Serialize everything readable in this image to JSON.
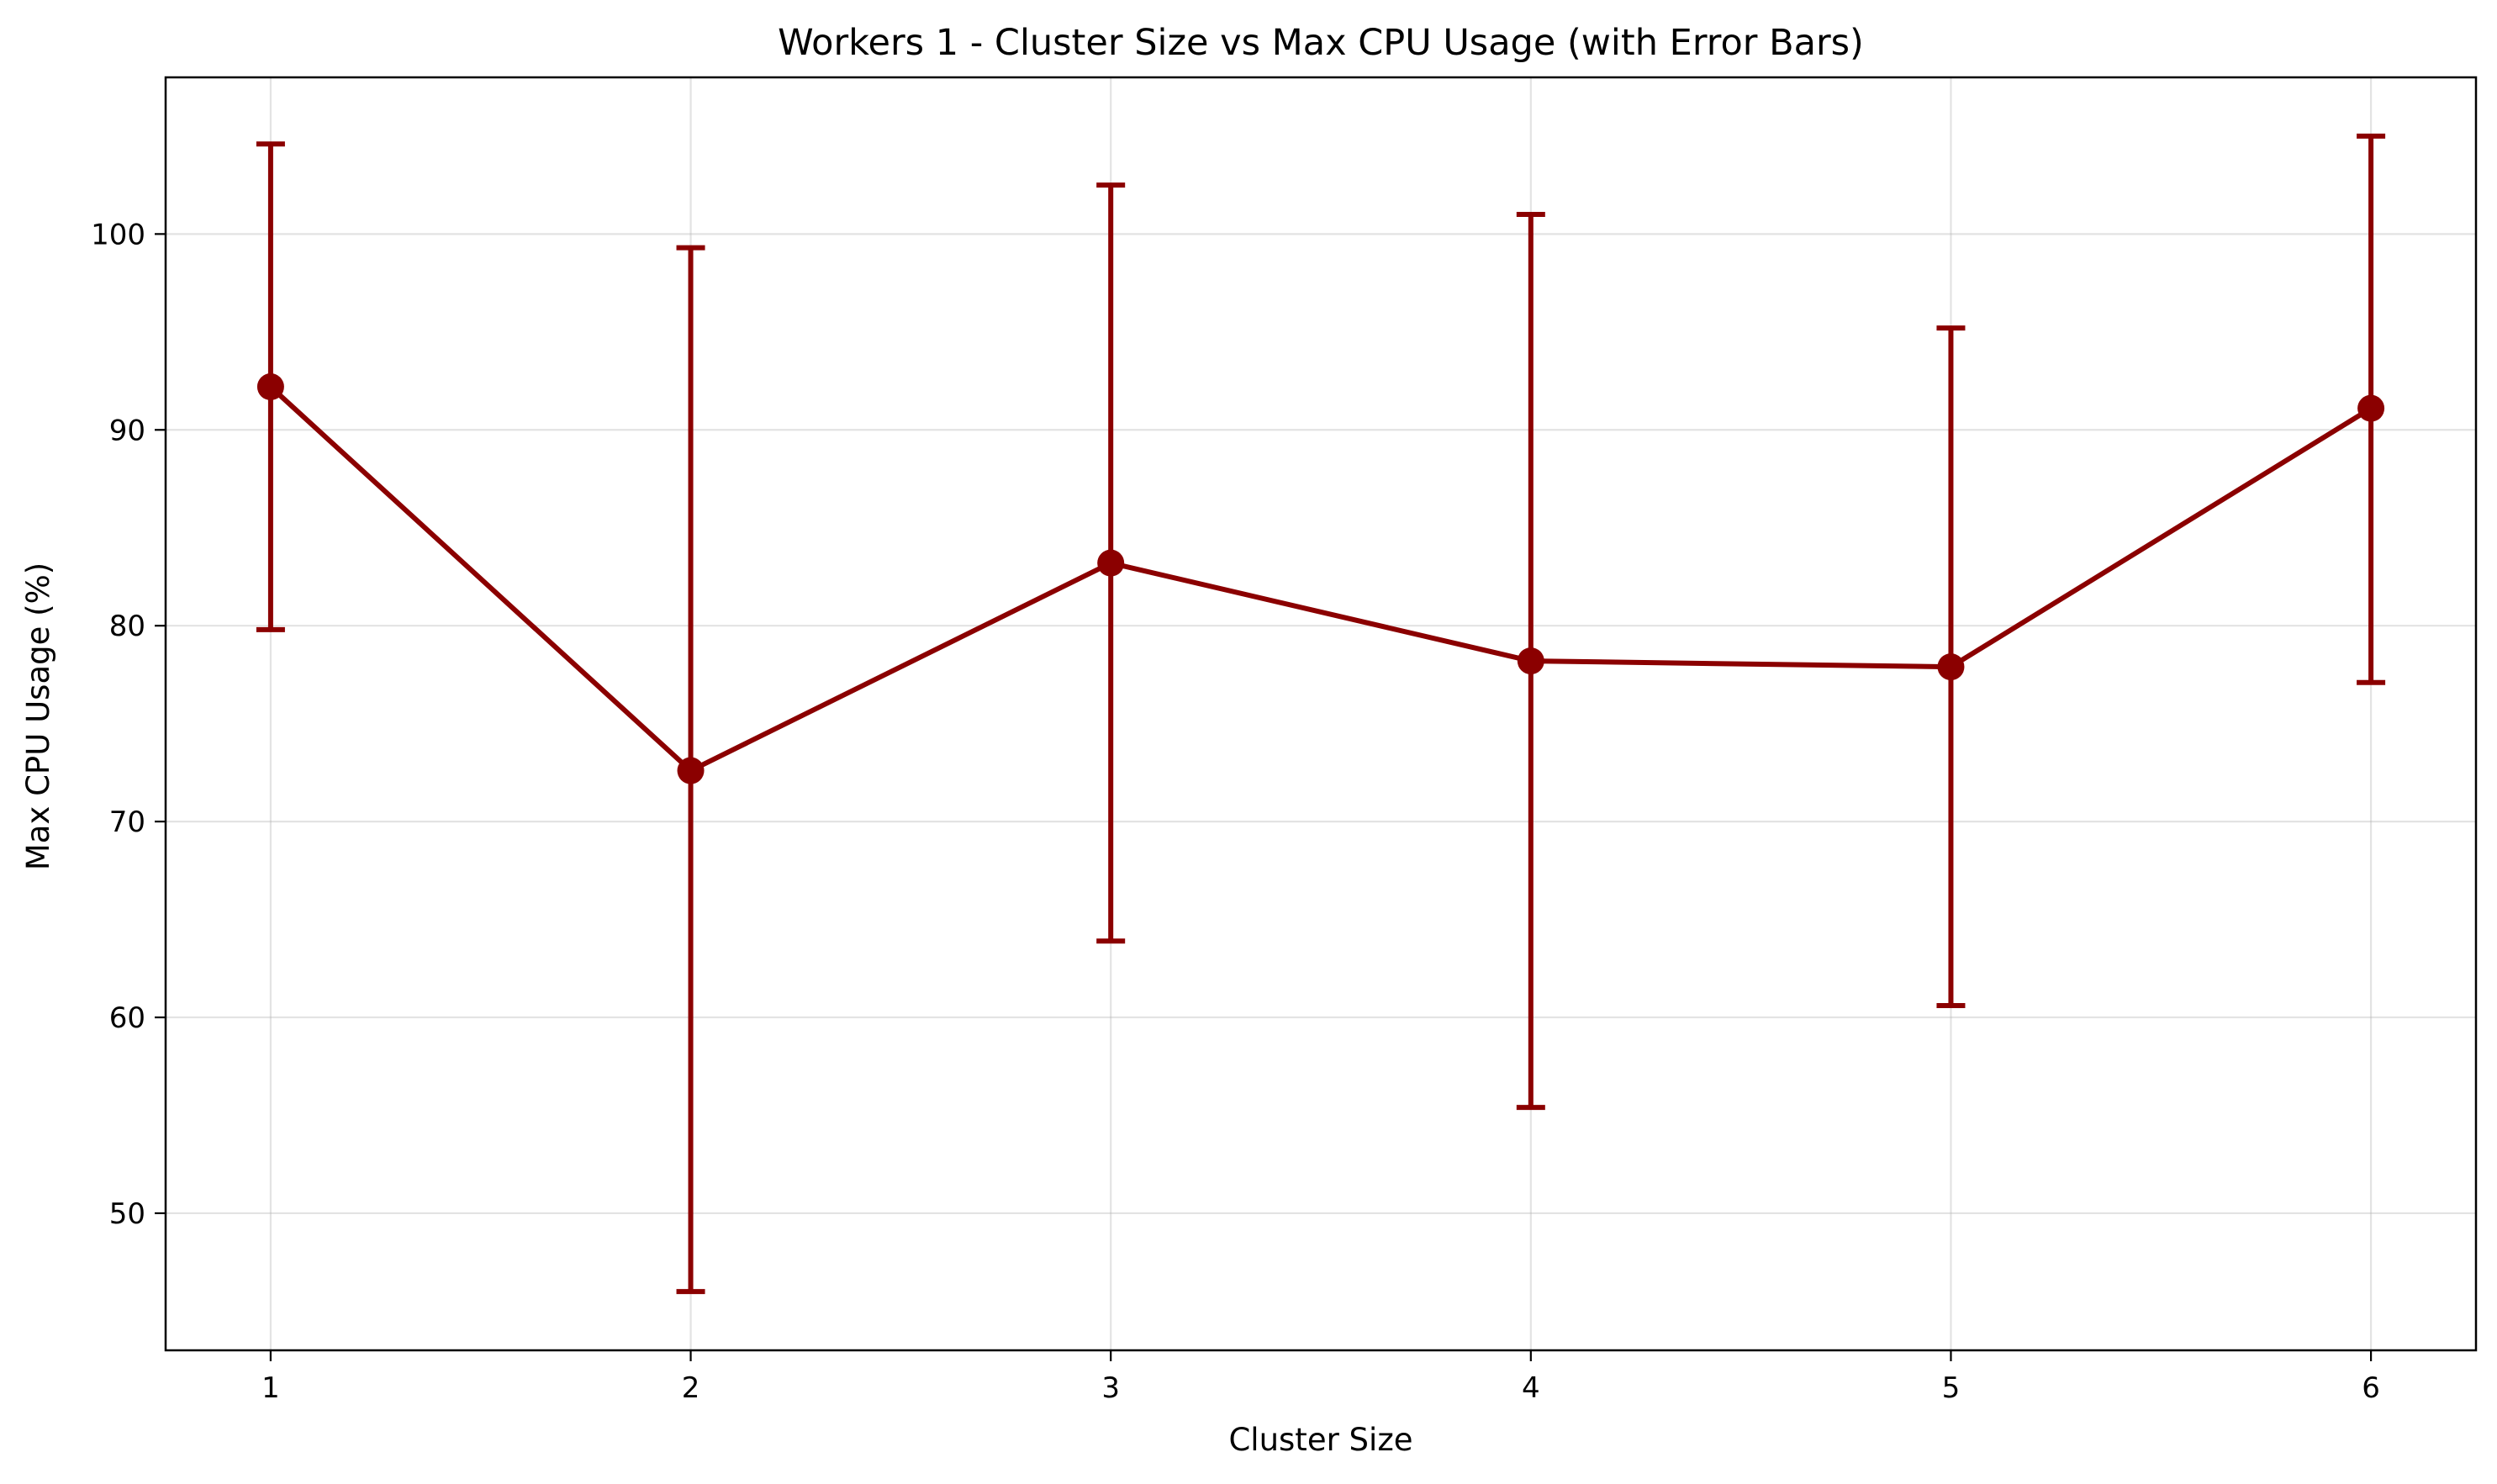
{
  "chart_data": {
    "type": "line",
    "title": "Workers 1 - Cluster Size vs Max CPU Usage (with Error Bars)",
    "xlabel": "Cluster Size",
    "ylabel": "Max CPU Usage (%)",
    "x": [
      1,
      2,
      3,
      4,
      5,
      6
    ],
    "xticks": [
      "1",
      "2",
      "3",
      "4",
      "5",
      "6"
    ],
    "xlim": [
      0.75,
      6.25
    ],
    "ylim": [
      43,
      108
    ],
    "yticks": [
      "50",
      "60",
      "70",
      "80",
      "90",
      "100"
    ],
    "grid": true,
    "series": [
      {
        "values": [
          92.2,
          72.6,
          83.2,
          78.2,
          77.9,
          91.1
        ],
        "error_low": [
          79.8,
          46.0,
          63.9,
          55.4,
          60.6,
          77.1
        ],
        "error_high": [
          104.6,
          99.3,
          102.5,
          101.0,
          95.2,
          105.0
        ],
        "color": "#8b0000"
      }
    ]
  }
}
